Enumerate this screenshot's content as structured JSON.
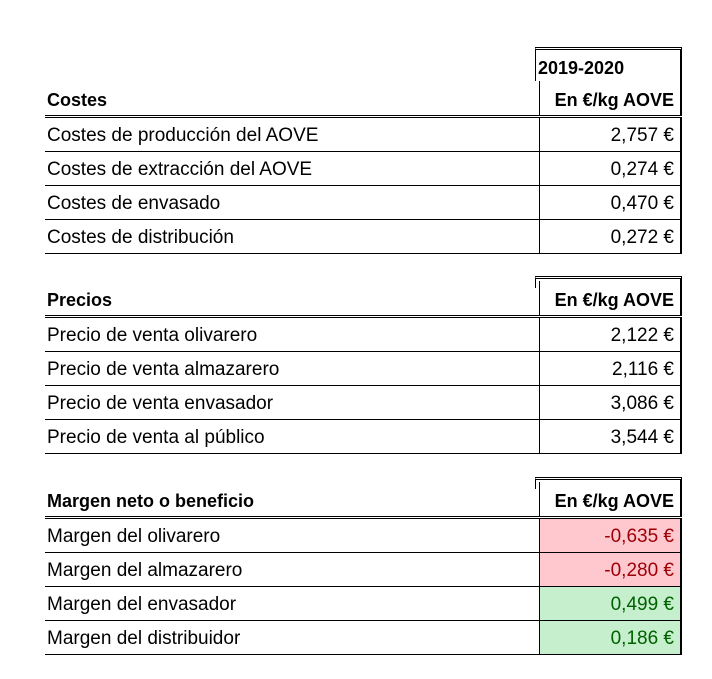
{
  "period": "2019-2020",
  "sections": [
    {
      "header_label": "Costes",
      "unit": "En €/kg AOVE",
      "rows": [
        {
          "label": "Costes de producción del AOVE",
          "value": "2,757 €"
        },
        {
          "label": "Costes de extracción del AOVE",
          "value": "0,274 €"
        },
        {
          "label": "Costes de envasado",
          "value": "0,470 €"
        },
        {
          "label": "Costes de distribución",
          "value": "0,272 €"
        }
      ]
    },
    {
      "header_label": "Precios",
      "unit": "En €/kg AOVE",
      "rows": [
        {
          "label": "Precio de venta olivarero",
          "value": "2,122 €"
        },
        {
          "label": "Precio de venta almazarero",
          "value": "2,116 €"
        },
        {
          "label": "Precio de venta envasador",
          "value": "3,086 €"
        },
        {
          "label": "Precio de venta al público",
          "value": "3,544 €"
        }
      ]
    },
    {
      "header_label": "Margen neto o beneficio",
      "unit": "En €/kg AOVE",
      "rows": [
        {
          "label": "Margen del olivarero",
          "value": "-0,635 €",
          "status": "negative",
          "fill": "#ffc7ce",
          "color": "#9c0006"
        },
        {
          "label": "Margen del almazarero",
          "value": "-0,280 €",
          "status": "negative",
          "fill": "#ffc7ce",
          "color": "#9c0006"
        },
        {
          "label": "Margen del envasador",
          "value": "0,499 €",
          "status": "positive",
          "fill": "#c6efce",
          "color": "#006100"
        },
        {
          "label": "Margen del distribuidor",
          "value": "0,186 €",
          "status": "positive",
          "fill": "#c6efce",
          "color": "#006100"
        }
      ]
    }
  ]
}
